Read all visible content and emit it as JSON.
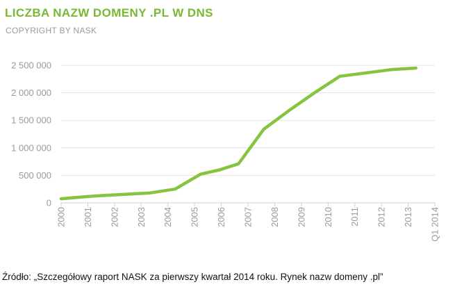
{
  "header": {
    "title": "LICZBA NAZW DOMENY .PL W DNS",
    "subtitle": "COPYRIGHT BY NASK"
  },
  "colors": {
    "accent": "#78b833",
    "line": "#86c440",
    "axis_text": "#9a9a9a",
    "grid": "#e3e3e3"
  },
  "chart_data": {
    "type": "line",
    "x_tick_labels": [
      "2000",
      "2001",
      "2002",
      "2003",
      "2004",
      "2005",
      "2006",
      "2007",
      "2008",
      "2009",
      "2010",
      "2011",
      "2012",
      "2013",
      "Q1 2014"
    ],
    "y_tick_labels": [
      "0",
      "500 000",
      "1 000 000",
      "1 500 000",
      "2 000 000",
      "2 500 000"
    ],
    "y_ticks": [
      0,
      500000,
      1000000,
      1500000,
      2000000,
      2500000
    ],
    "ylim": [
      0,
      2500000
    ],
    "xlim": [
      2000,
      2014.75
    ],
    "grid": "horizontal",
    "series": [
      {
        "x": [
          2000,
          2000.75,
          2001.5,
          2002.5,
          2003.5,
          2004.5,
          2005.5,
          2006.25,
          2007,
          2008,
          2009,
          2010,
          2011,
          2012,
          2013,
          2014
        ],
        "values": [
          75000,
          105000,
          130000,
          155000,
          180000,
          250000,
          520000,
          600000,
          710000,
          1340000,
          1680000,
          2000000,
          2300000,
          2360000,
          2420000,
          2450000
        ]
      }
    ]
  },
  "footer": {
    "source": "Źródło: „Szczegółowy raport NASK za pierwszy kwartał 2014 roku. Rynek nazw domeny .pl”"
  }
}
